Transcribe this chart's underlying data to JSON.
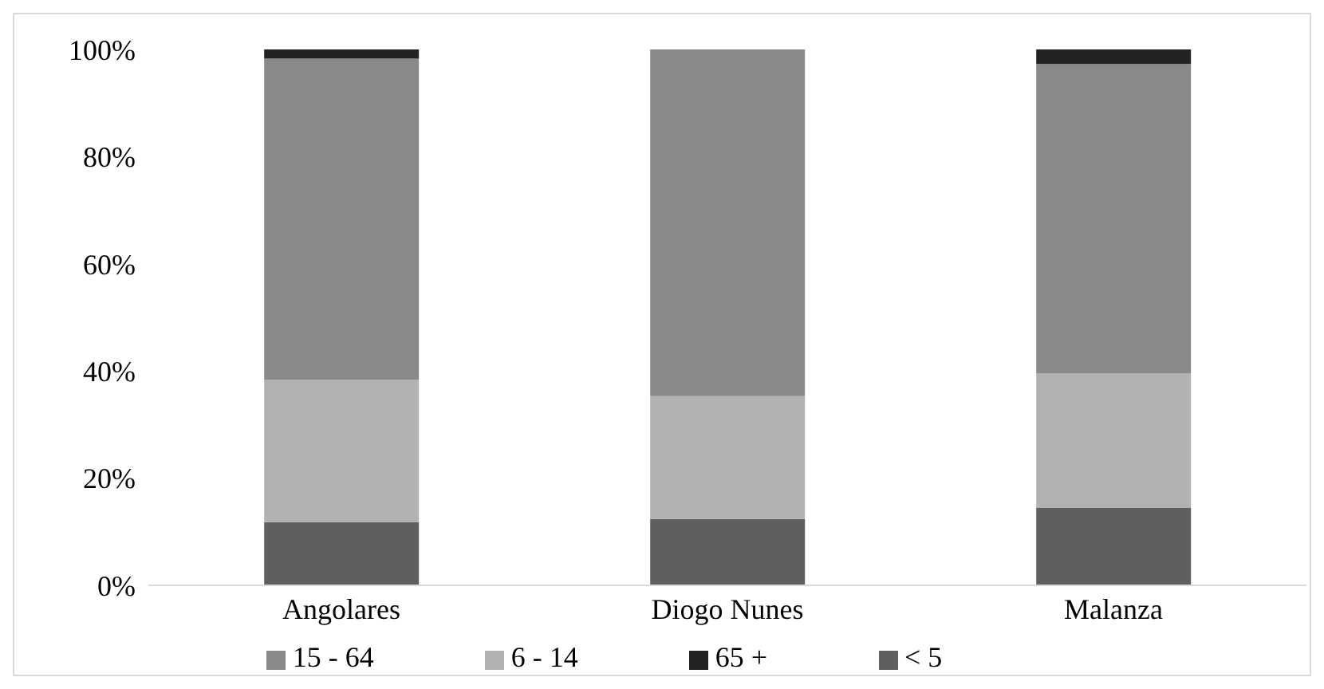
{
  "chart_data": {
    "type": "bar",
    "stacked": true,
    "categories": [
      "Angolares",
      "Diogo Nunes",
      "Malanza"
    ],
    "series": [
      {
        "name": "< 5",
        "color": "#5f5f5f",
        "values": [
          11.8,
          12.4,
          14.5
        ]
      },
      {
        "name": "6 - 14",
        "color": "#b2b2b2",
        "values": [
          26.6,
          22.9,
          25.1
        ]
      },
      {
        "name": "15 - 64",
        "color": "#898989",
        "values": [
          59.9,
          64.7,
          57.7
        ]
      },
      {
        "name": "65 +",
        "color": "#222222",
        "values": [
          1.7,
          0,
          2.7
        ]
      }
    ],
    "ylim": [
      0,
      100
    ],
    "yticks": [
      {
        "value": 0,
        "label": "0%"
      },
      {
        "value": 20,
        "label": "20%"
      },
      {
        "value": 40,
        "label": "40%"
      },
      {
        "value": 60,
        "label": "60%"
      },
      {
        "value": 80,
        "label": "80%"
      },
      {
        "value": 100,
        "label": "100%"
      }
    ],
    "grid": false,
    "legend": "bottom"
  }
}
